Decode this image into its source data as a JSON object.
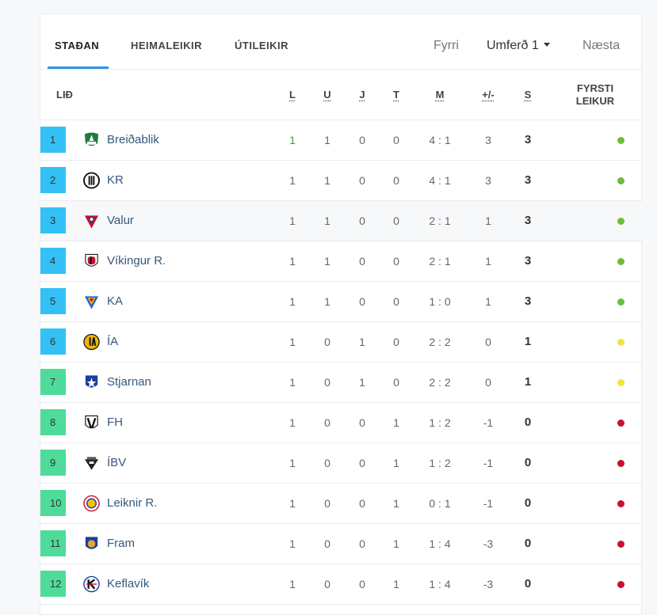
{
  "tabs": [
    {
      "label": "STAÐAN"
    },
    {
      "label": "HEIMALEIKIR"
    },
    {
      "label": "ÚTILEIKIR"
    }
  ],
  "nav": {
    "prev": "Fyrri",
    "round": "Umferð 1",
    "next": "Næsta"
  },
  "headers": {
    "team": "LIÐ",
    "L": "L",
    "U": "U",
    "J": "J",
    "T": "T",
    "M": "M",
    "diff": "+/-",
    "S": "S",
    "first_line1": "FYRSTI",
    "first_line2": "LEIKUR"
  },
  "colors": {
    "win": "#6dbd3c",
    "draw": "#f1e33f",
    "loss": "#c9102f",
    "rank_blue": "#33c1f5",
    "rank_green": "#4fdc9b"
  },
  "teams": [
    {
      "rank": "1",
      "name": "Breiðablik",
      "L": "1",
      "U": "1",
      "J": "0",
      "T": "0",
      "M": "4 : 1",
      "diff": "3",
      "S": "3",
      "result": "win",
      "zone": "blue",
      "logo": "breidablik-logo"
    },
    {
      "rank": "2",
      "name": "KR",
      "L": "1",
      "U": "1",
      "J": "0",
      "T": "0",
      "M": "4 : 1",
      "diff": "3",
      "S": "3",
      "result": "win",
      "zone": "blue",
      "logo": "kr-logo"
    },
    {
      "rank": "3",
      "name": "Valur",
      "L": "1",
      "U": "1",
      "J": "0",
      "T": "0",
      "M": "2 : 1",
      "diff": "1",
      "S": "3",
      "result": "win",
      "zone": "blue",
      "logo": "valur-logo"
    },
    {
      "rank": "4",
      "name": "Víkingur R.",
      "L": "1",
      "U": "1",
      "J": "0",
      "T": "0",
      "M": "2 : 1",
      "diff": "1",
      "S": "3",
      "result": "win",
      "zone": "blue",
      "logo": "vikingur-logo"
    },
    {
      "rank": "5",
      "name": "KA",
      "L": "1",
      "U": "1",
      "J": "0",
      "T": "0",
      "M": "1 : 0",
      "diff": "1",
      "S": "3",
      "result": "win",
      "zone": "blue",
      "logo": "ka-logo"
    },
    {
      "rank": "6",
      "name": "ÍA",
      "L": "1",
      "U": "0",
      "J": "1",
      "T": "0",
      "M": "2 : 2",
      "diff": "0",
      "S": "1",
      "result": "draw",
      "zone": "blue",
      "logo": "ia-logo"
    },
    {
      "rank": "7",
      "name": "Stjarnan",
      "L": "1",
      "U": "0",
      "J": "1",
      "T": "0",
      "M": "2 : 2",
      "diff": "0",
      "S": "1",
      "result": "draw",
      "zone": "green",
      "logo": "stjarnan-logo"
    },
    {
      "rank": "8",
      "name": "FH",
      "L": "1",
      "U": "0",
      "J": "0",
      "T": "1",
      "M": "1 : 2",
      "diff": "-1",
      "S": "0",
      "result": "loss",
      "zone": "green",
      "logo": "fh-logo"
    },
    {
      "rank": "9",
      "name": "ÍBV",
      "L": "1",
      "U": "0",
      "J": "0",
      "T": "1",
      "M": "1 : 2",
      "diff": "-1",
      "S": "0",
      "result": "loss",
      "zone": "green",
      "logo": "ibv-logo"
    },
    {
      "rank": "10",
      "name": "Leiknir R.",
      "L": "1",
      "U": "0",
      "J": "0",
      "T": "1",
      "M": "0 : 1",
      "diff": "-1",
      "S": "0",
      "result": "loss",
      "zone": "green",
      "logo": "leiknir-logo"
    },
    {
      "rank": "11",
      "name": "Fram",
      "L": "1",
      "U": "0",
      "J": "0",
      "T": "1",
      "M": "1 : 4",
      "diff": "-3",
      "S": "0",
      "result": "loss",
      "zone": "green",
      "logo": "fram-logo"
    },
    {
      "rank": "12",
      "name": "Keflavík",
      "L": "1",
      "U": "0",
      "J": "0",
      "T": "1",
      "M": "1 : 4",
      "diff": "-3",
      "S": "0",
      "result": "loss",
      "zone": "green",
      "logo": "keflavik-logo"
    }
  ]
}
